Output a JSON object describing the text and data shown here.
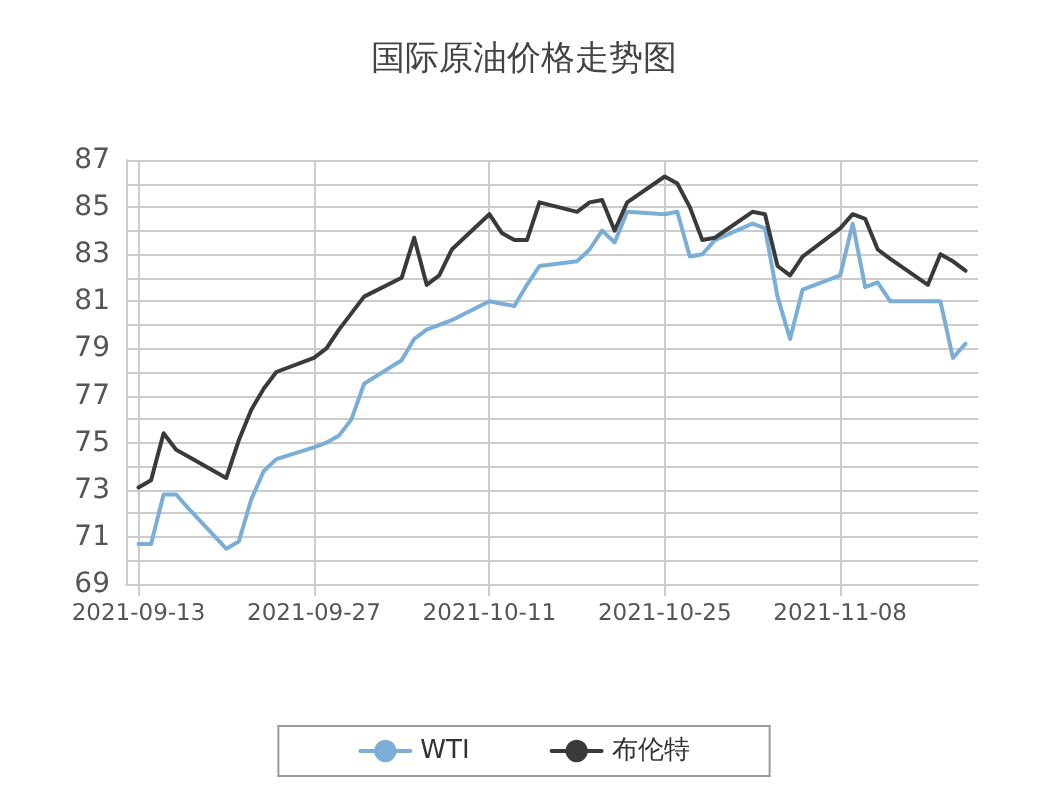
{
  "chart_data": {
    "type": "line",
    "title": "国际原油价格走势图",
    "x": [
      "2021-09-13",
      "2021-09-14",
      "2021-09-15",
      "2021-09-16",
      "2021-09-17",
      "2021-09-20",
      "2021-09-21",
      "2021-09-22",
      "2021-09-23",
      "2021-09-24",
      "2021-09-27",
      "2021-09-28",
      "2021-09-29",
      "2021-09-30",
      "2021-10-01",
      "2021-10-04",
      "2021-10-05",
      "2021-10-06",
      "2021-10-07",
      "2021-10-08",
      "2021-10-11",
      "2021-10-12",
      "2021-10-13",
      "2021-10-14",
      "2021-10-15",
      "2021-10-18",
      "2021-10-19",
      "2021-10-20",
      "2021-10-21",
      "2021-10-22",
      "2021-10-25",
      "2021-10-26",
      "2021-10-27",
      "2021-10-28",
      "2021-10-29",
      "2021-11-01",
      "2021-11-02",
      "2021-11-03",
      "2021-11-04",
      "2021-11-05",
      "2021-11-08",
      "2021-11-09",
      "2021-11-10",
      "2021-11-11",
      "2021-11-12",
      "2021-11-15",
      "2021-11-16",
      "2021-11-17",
      "2021-11-18"
    ],
    "series": [
      {
        "name": "WTI",
        "color": "#7aaed6",
        "values": [
          70.7,
          70.7,
          72.8,
          72.8,
          72.2,
          70.5,
          70.8,
          72.6,
          73.8,
          74.3,
          74.8,
          75.0,
          75.3,
          76.0,
          77.5,
          78.5,
          79.4,
          79.8,
          80.0,
          80.2,
          81.0,
          80.9,
          80.8,
          81.7,
          82.5,
          82.7,
          83.2,
          84.0,
          83.5,
          84.8,
          84.7,
          84.8,
          82.9,
          83.0,
          83.6,
          84.3,
          84.1,
          81.2,
          79.4,
          81.5,
          82.1,
          84.3,
          81.6,
          81.8,
          81.0,
          81.0,
          81.0,
          78.6,
          79.2
        ]
      },
      {
        "name": "布伦特",
        "color": "#3a3a3a",
        "values": [
          73.1,
          73.4,
          75.4,
          74.7,
          74.4,
          73.5,
          75.1,
          76.4,
          77.3,
          78.0,
          78.6,
          79.0,
          79.8,
          80.5,
          81.2,
          82.0,
          83.7,
          81.7,
          82.1,
          83.2,
          84.7,
          83.9,
          83.6,
          83.6,
          85.2,
          84.8,
          85.2,
          85.3,
          84.0,
          85.2,
          86.3,
          86.0,
          85.0,
          83.6,
          83.7,
          84.8,
          84.7,
          82.5,
          82.1,
          82.9,
          84.1,
          84.7,
          84.5,
          83.2,
          82.8,
          81.7,
          83.0,
          82.7,
          82.3
        ]
      }
    ],
    "xlim": [
      "2021-09-12",
      "2021-11-19"
    ],
    "xticks": [
      "2021-09-13",
      "2021-09-27",
      "2021-10-11",
      "2021-10-25",
      "2021-11-08"
    ],
    "ylim": [
      69,
      87
    ],
    "yticks": [
      69,
      {
        "value": 70,
        "label": null
      },
      71,
      {
        "value": 72,
        "label": null
      },
      73,
      {
        "value": 74,
        "label": null
      },
      75,
      {
        "value": 76,
        "label": null
      },
      77,
      {
        "value": 78,
        "label": null
      },
      79,
      {
        "value": 80,
        "label": null
      },
      81,
      {
        "value": 82,
        "label": null
      },
      83,
      {
        "value": 84,
        "label": null
      },
      85,
      {
        "value": 86,
        "label": null
      },
      87
    ],
    "grid": true,
    "legend": "bottom",
    "marker": "none",
    "line_style": "solid"
  }
}
